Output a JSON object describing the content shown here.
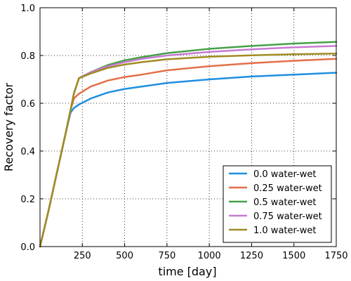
{
  "chart_data": {
    "type": "line",
    "title": "",
    "xlabel": "time [day]",
    "ylabel": "Recovery factor",
    "xlim": [
      0,
      1750
    ],
    "ylim": [
      0.0,
      1.0
    ],
    "xticks": [
      250,
      500,
      750,
      1000,
      1250,
      1500,
      1750
    ],
    "xtick_labels": [
      "250",
      "500",
      "750",
      "1000",
      "1250",
      "1500",
      "1750"
    ],
    "yticks": [
      0.0,
      0.2,
      0.4,
      0.6,
      0.8,
      1.0
    ],
    "ytick_labels": [
      "0.0",
      "0.2",
      "0.4",
      "0.6",
      "0.8",
      "1.0"
    ],
    "grid": true,
    "legend_position": "bottom-right",
    "x": [
      0,
      50,
      100,
      150,
      180,
      200,
      230,
      300,
      400,
      500,
      600,
      750,
      1000,
      1250,
      1500,
      1750
    ],
    "series": [
      {
        "name": "0.0 water-wet",
        "color": "#1f8fe0",
        "values": [
          0.0,
          0.15,
          0.31,
          0.47,
          0.56,
          0.58,
          0.595,
          0.62,
          0.645,
          0.66,
          0.67,
          0.685,
          0.7,
          0.712,
          0.72,
          0.728
        ]
      },
      {
        "name": "0.25 water-wet",
        "color": "#e2704a",
        "values": [
          0.0,
          0.15,
          0.31,
          0.47,
          0.57,
          0.62,
          0.64,
          0.67,
          0.695,
          0.71,
          0.72,
          0.738,
          0.755,
          0.768,
          0.778,
          0.786
        ]
      },
      {
        "name": "0.5 water-wet",
        "color": "#45a147",
        "values": [
          0.0,
          0.15,
          0.31,
          0.47,
          0.57,
          0.64,
          0.705,
          0.73,
          0.76,
          0.78,
          0.793,
          0.81,
          0.828,
          0.84,
          0.85,
          0.857
        ]
      },
      {
        "name": "0.75 water-wet",
        "color": "#c77ad2",
        "values": [
          0.0,
          0.15,
          0.31,
          0.47,
          0.57,
          0.64,
          0.705,
          0.73,
          0.755,
          0.772,
          0.786,
          0.8,
          0.815,
          0.826,
          0.834,
          0.84
        ]
      },
      {
        "name": "1.0 water-wet",
        "color": "#a08c22",
        "values": [
          0.0,
          0.15,
          0.31,
          0.47,
          0.57,
          0.64,
          0.705,
          0.725,
          0.748,
          0.762,
          0.772,
          0.784,
          0.795,
          0.801,
          0.805,
          0.808
        ]
      }
    ]
  }
}
